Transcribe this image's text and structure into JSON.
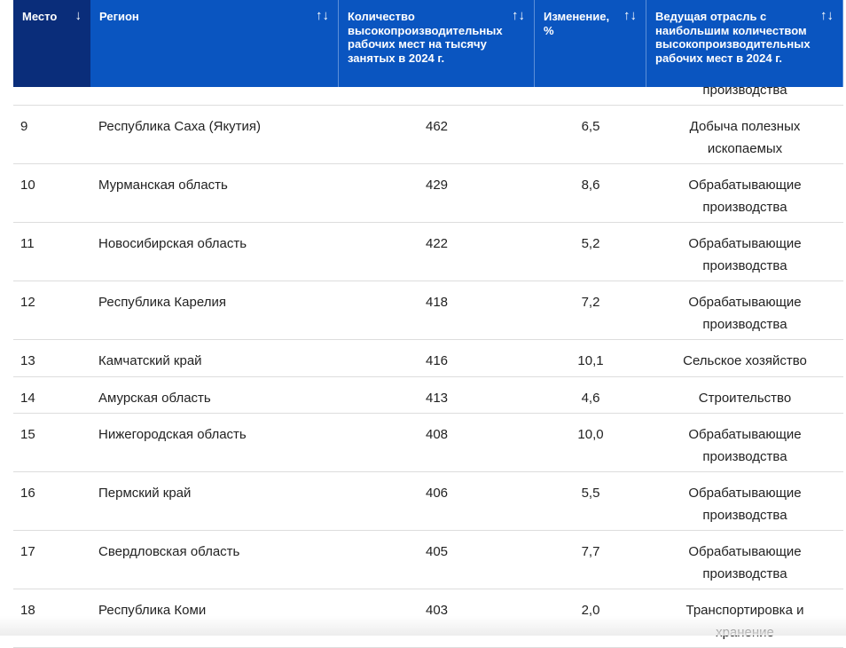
{
  "header": {
    "columns": [
      {
        "label": "Место",
        "sort": "↓"
      },
      {
        "label": "Регион",
        "sort": "↑↓"
      },
      {
        "label": "Количество высокопроизводительных рабочих мест на тысячу занятых в 2024 г.",
        "sort": "↑↓"
      },
      {
        "label": "Изменение, %",
        "sort": "↑↓"
      },
      {
        "label": "Ведущая отрасль с наибольшим количеством высокопроизводительных рабочих мест в 2024 г.",
        "sort": "↑↓"
      }
    ],
    "colors": {
      "header_bg": "#0a55c0",
      "sorted_col_bg": "#0a2d7a"
    }
  },
  "partial_row": {
    "industry": "Обрабатывающие производства"
  },
  "rows": [
    {
      "rank": "9",
      "region": "Республика Саха (Якутия)",
      "count": "462",
      "change": "6,5",
      "industry": "Добыча полезных ископаемых"
    },
    {
      "rank": "10",
      "region": "Мурманская область",
      "count": "429",
      "change": "8,6",
      "industry": "Обрабатывающие производства"
    },
    {
      "rank": "11",
      "region": "Новосибирская область",
      "count": "422",
      "change": "5,2",
      "industry": "Обрабатывающие производства"
    },
    {
      "rank": "12",
      "region": "Республика Карелия",
      "count": "418",
      "change": "7,2",
      "industry": "Обрабатывающие производства"
    },
    {
      "rank": "13",
      "region": "Камчатский край",
      "count": "416",
      "change": "10,1",
      "industry": "Сельское хозяйство"
    },
    {
      "rank": "14",
      "region": "Амурская область",
      "count": "413",
      "change": "4,6",
      "industry": "Строительство"
    },
    {
      "rank": "15",
      "region": "Нижегородская область",
      "count": "408",
      "change": "10,0",
      "industry": "Обрабатывающие производства"
    },
    {
      "rank": "16",
      "region": "Пермский край",
      "count": "406",
      "change": "5,5",
      "industry": "Обрабатывающие производства"
    },
    {
      "rank": "17",
      "region": "Свердловская область",
      "count": "405",
      "change": "7,7",
      "industry": "Обрабатывающие производства"
    },
    {
      "rank": "18",
      "region": "Республика Коми",
      "count": "403",
      "change": "2,0",
      "industry": "Транспортировка и хранение"
    }
  ]
}
